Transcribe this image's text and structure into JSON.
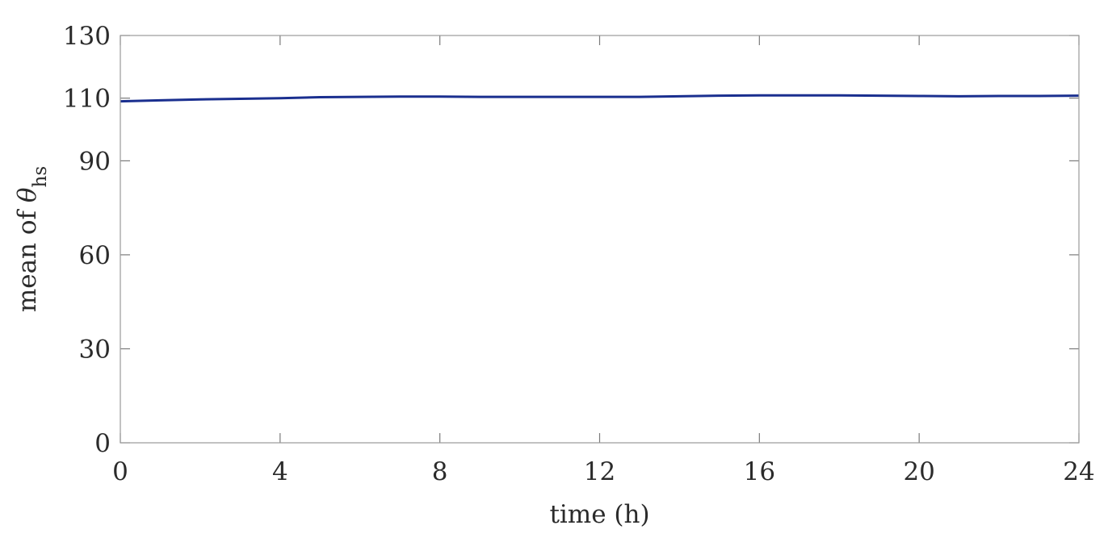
{
  "chart_data": {
    "type": "line",
    "title": "",
    "xlabel": "time (h)",
    "ylabel_prefix": "mean of ",
    "ylabel_symbol": "θ",
    "ylabel_subscript": "hs",
    "xlim": [
      0,
      24
    ],
    "ylim": [
      0,
      130
    ],
    "xticks": [
      0,
      4,
      8,
      12,
      16,
      20,
      24
    ],
    "yticks": [
      0,
      30,
      60,
      90,
      110,
      130
    ],
    "grid": false,
    "series": [
      {
        "color": "#1a2f8f",
        "x": [
          0,
          1,
          2,
          3,
          4,
          5,
          6,
          7,
          8,
          9,
          10,
          11,
          12,
          13,
          14,
          15,
          16,
          17,
          18,
          19,
          20,
          21,
          22,
          23,
          24
        ],
        "y": [
          109.0,
          109.3,
          109.6,
          109.8,
          110.0,
          110.3,
          110.4,
          110.5,
          110.5,
          110.4,
          110.4,
          110.4,
          110.4,
          110.4,
          110.6,
          110.8,
          110.9,
          110.9,
          110.9,
          110.8,
          110.7,
          110.6,
          110.7,
          110.7,
          110.8
        ]
      }
    ]
  }
}
